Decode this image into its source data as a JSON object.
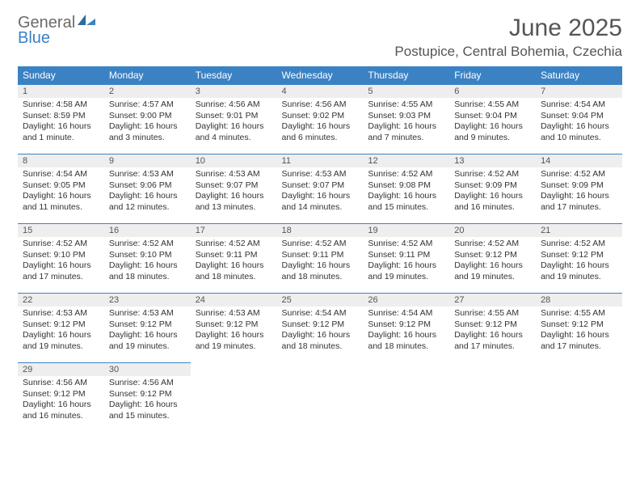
{
  "logo": {
    "text1": "General",
    "text2": "Blue"
  },
  "title": "June 2025",
  "location": "Postupice, Central Bohemia, Czechia",
  "colors": {
    "header_bg": "#3b82c4",
    "header_text": "#ffffff",
    "daynum_bg": "#eeeeee",
    "daynum_border": "#3b82c4",
    "body_text": "#333333",
    "title_text": "#555555",
    "logo_gray": "#6b6b6b",
    "logo_blue": "#3b82c4",
    "page_bg": "#ffffff"
  },
  "typography": {
    "month_title_pt": 30,
    "location_pt": 17,
    "dayheader_pt": 12,
    "daynum_pt": 11,
    "daybody_pt": 10.5
  },
  "day_headers": [
    "Sunday",
    "Monday",
    "Tuesday",
    "Wednesday",
    "Thursday",
    "Friday",
    "Saturday"
  ],
  "weeks": [
    [
      {
        "n": "1",
        "sr": "Sunrise: 4:58 AM",
        "ss": "Sunset: 8:59 PM",
        "dl": "Daylight: 16 hours and 1 minute."
      },
      {
        "n": "2",
        "sr": "Sunrise: 4:57 AM",
        "ss": "Sunset: 9:00 PM",
        "dl": "Daylight: 16 hours and 3 minutes."
      },
      {
        "n": "3",
        "sr": "Sunrise: 4:56 AM",
        "ss": "Sunset: 9:01 PM",
        "dl": "Daylight: 16 hours and 4 minutes."
      },
      {
        "n": "4",
        "sr": "Sunrise: 4:56 AM",
        "ss": "Sunset: 9:02 PM",
        "dl": "Daylight: 16 hours and 6 minutes."
      },
      {
        "n": "5",
        "sr": "Sunrise: 4:55 AM",
        "ss": "Sunset: 9:03 PM",
        "dl": "Daylight: 16 hours and 7 minutes."
      },
      {
        "n": "6",
        "sr": "Sunrise: 4:55 AM",
        "ss": "Sunset: 9:04 PM",
        "dl": "Daylight: 16 hours and 9 minutes."
      },
      {
        "n": "7",
        "sr": "Sunrise: 4:54 AM",
        "ss": "Sunset: 9:04 PM",
        "dl": "Daylight: 16 hours and 10 minutes."
      }
    ],
    [
      {
        "n": "8",
        "sr": "Sunrise: 4:54 AM",
        "ss": "Sunset: 9:05 PM",
        "dl": "Daylight: 16 hours and 11 minutes."
      },
      {
        "n": "9",
        "sr": "Sunrise: 4:53 AM",
        "ss": "Sunset: 9:06 PM",
        "dl": "Daylight: 16 hours and 12 minutes."
      },
      {
        "n": "10",
        "sr": "Sunrise: 4:53 AM",
        "ss": "Sunset: 9:07 PM",
        "dl": "Daylight: 16 hours and 13 minutes."
      },
      {
        "n": "11",
        "sr": "Sunrise: 4:53 AM",
        "ss": "Sunset: 9:07 PM",
        "dl": "Daylight: 16 hours and 14 minutes."
      },
      {
        "n": "12",
        "sr": "Sunrise: 4:52 AM",
        "ss": "Sunset: 9:08 PM",
        "dl": "Daylight: 16 hours and 15 minutes."
      },
      {
        "n": "13",
        "sr": "Sunrise: 4:52 AM",
        "ss": "Sunset: 9:09 PM",
        "dl": "Daylight: 16 hours and 16 minutes."
      },
      {
        "n": "14",
        "sr": "Sunrise: 4:52 AM",
        "ss": "Sunset: 9:09 PM",
        "dl": "Daylight: 16 hours and 17 minutes."
      }
    ],
    [
      {
        "n": "15",
        "sr": "Sunrise: 4:52 AM",
        "ss": "Sunset: 9:10 PM",
        "dl": "Daylight: 16 hours and 17 minutes."
      },
      {
        "n": "16",
        "sr": "Sunrise: 4:52 AM",
        "ss": "Sunset: 9:10 PM",
        "dl": "Daylight: 16 hours and 18 minutes."
      },
      {
        "n": "17",
        "sr": "Sunrise: 4:52 AM",
        "ss": "Sunset: 9:11 PM",
        "dl": "Daylight: 16 hours and 18 minutes."
      },
      {
        "n": "18",
        "sr": "Sunrise: 4:52 AM",
        "ss": "Sunset: 9:11 PM",
        "dl": "Daylight: 16 hours and 18 minutes."
      },
      {
        "n": "19",
        "sr": "Sunrise: 4:52 AM",
        "ss": "Sunset: 9:11 PM",
        "dl": "Daylight: 16 hours and 19 minutes."
      },
      {
        "n": "20",
        "sr": "Sunrise: 4:52 AM",
        "ss": "Sunset: 9:12 PM",
        "dl": "Daylight: 16 hours and 19 minutes."
      },
      {
        "n": "21",
        "sr": "Sunrise: 4:52 AM",
        "ss": "Sunset: 9:12 PM",
        "dl": "Daylight: 16 hours and 19 minutes."
      }
    ],
    [
      {
        "n": "22",
        "sr": "Sunrise: 4:53 AM",
        "ss": "Sunset: 9:12 PM",
        "dl": "Daylight: 16 hours and 19 minutes."
      },
      {
        "n": "23",
        "sr": "Sunrise: 4:53 AM",
        "ss": "Sunset: 9:12 PM",
        "dl": "Daylight: 16 hours and 19 minutes."
      },
      {
        "n": "24",
        "sr": "Sunrise: 4:53 AM",
        "ss": "Sunset: 9:12 PM",
        "dl": "Daylight: 16 hours and 19 minutes."
      },
      {
        "n": "25",
        "sr": "Sunrise: 4:54 AM",
        "ss": "Sunset: 9:12 PM",
        "dl": "Daylight: 16 hours and 18 minutes."
      },
      {
        "n": "26",
        "sr": "Sunrise: 4:54 AM",
        "ss": "Sunset: 9:12 PM",
        "dl": "Daylight: 16 hours and 18 minutes."
      },
      {
        "n": "27",
        "sr": "Sunrise: 4:55 AM",
        "ss": "Sunset: 9:12 PM",
        "dl": "Daylight: 16 hours and 17 minutes."
      },
      {
        "n": "28",
        "sr": "Sunrise: 4:55 AM",
        "ss": "Sunset: 9:12 PM",
        "dl": "Daylight: 16 hours and 17 minutes."
      }
    ],
    [
      {
        "n": "29",
        "sr": "Sunrise: 4:56 AM",
        "ss": "Sunset: 9:12 PM",
        "dl": "Daylight: 16 hours and 16 minutes."
      },
      {
        "n": "30",
        "sr": "Sunrise: 4:56 AM",
        "ss": "Sunset: 9:12 PM",
        "dl": "Daylight: 16 hours and 15 minutes."
      },
      {
        "empty": true
      },
      {
        "empty": true
      },
      {
        "empty": true
      },
      {
        "empty": true
      },
      {
        "empty": true
      }
    ]
  ]
}
